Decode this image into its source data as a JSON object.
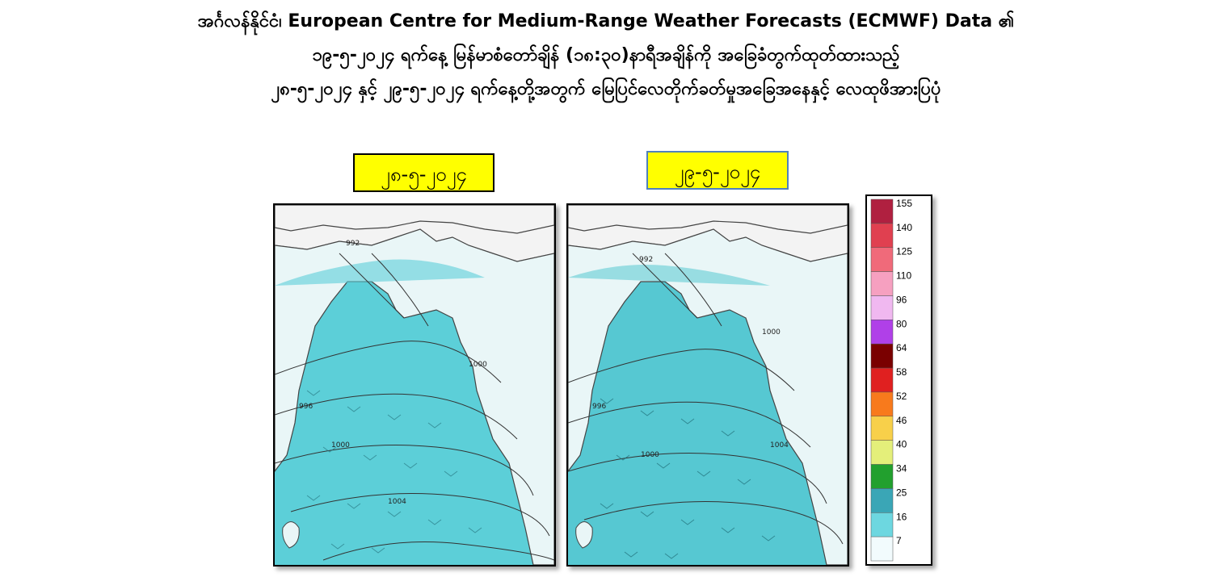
{
  "title": {
    "line1": "အင်္ဂလန်နိုင်ငံ၊ European Centre for Medium-Range Weather Forecasts  (ECMWF) Data ၏",
    "line2": "၁၉-၅-၂၀၂၄ ရက်နေ့ မြန်မာစံတော်ချိန် (၁၈:၃၀)နာရီအချိန်ကို  အခြေခံတွက်ထုတ်ထားသည့်",
    "line3": "၂၈-၅-၂၀၂၄ နှင့် ၂၉-၅-၂၀၂၄ ရက်နေ့တို့အတွက် မြေပြင်လေတိုက်ခတ်မှုအခြေအနေနှင့် လေထုဖိအားပြပုံ"
  },
  "panels": [
    {
      "date": "၂၈-၅-၂၀၂၄",
      "isobars": [
        "992",
        "996",
        "1000",
        "1004",
        "1000"
      ]
    },
    {
      "date": "၂၉-၅-၂၀၂၄",
      "isobars": [
        "992",
        "996",
        "1000",
        "1004",
        "1000"
      ]
    }
  ],
  "legend": {
    "unit_colors": {
      "7": "#f2fbfd",
      "16": "#6dd7e0",
      "25": "#3aa6b6",
      "34": "#22a02e",
      "40": "#e4ef7a",
      "46": "#f8d04a",
      "52": "#f87a1c",
      "58": "#e02020",
      "64": "#7a0000",
      "80": "#b040e8",
      "96": "#f0b8f0",
      "110": "#f6a0c0",
      "125": "#f06a7a",
      "140": "#e04050",
      "155": "#b02040"
    },
    "labels": [
      "155",
      "140",
      "125",
      "110",
      "96",
      "80",
      "64",
      "58",
      "52",
      "46",
      "40",
      "34",
      "25",
      "16",
      "7"
    ]
  }
}
